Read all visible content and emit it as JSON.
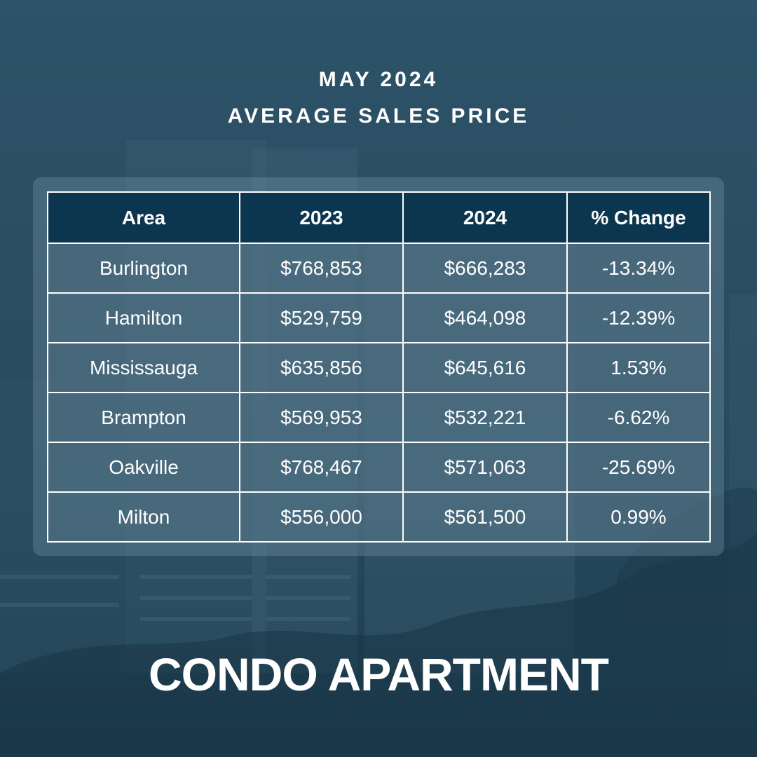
{
  "title": {
    "line1": "MAY 2024",
    "line2": "AVERAGE SALES PRICE"
  },
  "table": {
    "headers": [
      "Area",
      "2023",
      "2024",
      "% Change"
    ],
    "rows": [
      [
        "Burlington",
        "$768,853",
        "$666,283",
        "-13.34%"
      ],
      [
        "Hamilton",
        "$529,759",
        "$464,098",
        "-12.39%"
      ],
      [
        "Mississauga",
        "$635,856",
        "$645,616",
        "1.53%"
      ],
      [
        "Brampton",
        "$569,953",
        "$532,221",
        "-6.62%"
      ],
      [
        "Oakville",
        "$768,467",
        "$571,063",
        "-25.69%"
      ],
      [
        "Milton",
        "$556,000",
        "$561,500",
        "0.99%"
      ]
    ]
  },
  "footer": {
    "label": "CONDO APARTMENT"
  },
  "colors": {
    "header_bg": "#0c3650",
    "background": "#2a4e62",
    "text": "#ffffff"
  }
}
